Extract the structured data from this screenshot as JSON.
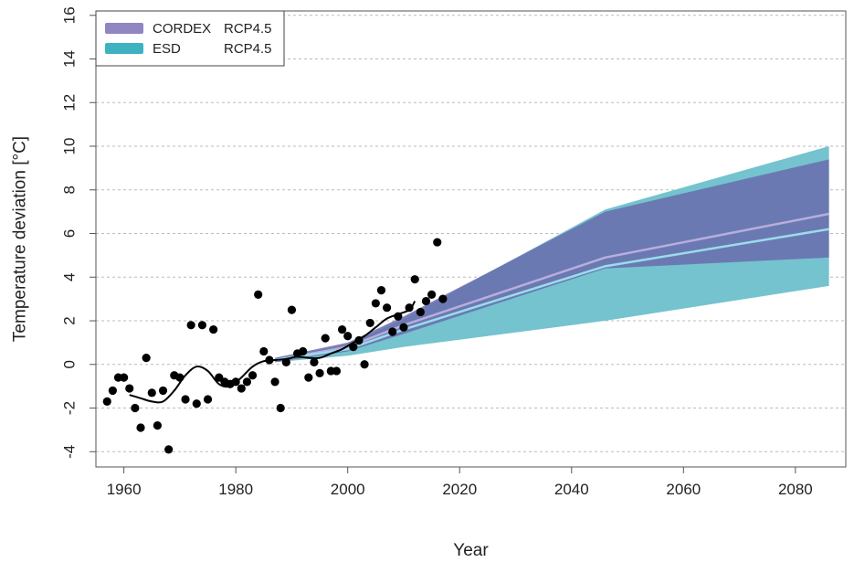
{
  "chart_data": {
    "type": "scatter",
    "title": "",
    "xlabel": "Year",
    "ylabel": "Temperature deviation [°C]",
    "xlim": [
      1955,
      2089
    ],
    "ylim": [
      -4.7,
      16.2
    ],
    "xticks": [
      1960,
      1980,
      2000,
      2020,
      2040,
      2060,
      2080
    ],
    "yticks": [
      -4,
      -2,
      0,
      2,
      4,
      6,
      8,
      10,
      12,
      14,
      16
    ],
    "grid": "horizontal dashed",
    "legend_position": "top-left",
    "legend": [
      {
        "label": "CORDEX",
        "scenario": "RCP4.5",
        "color": "#8f86c2"
      },
      {
        "label": "ESD",
        "scenario": "RCP4.5",
        "color": "#3fb2c2"
      }
    ],
    "colors": {
      "cordex_band": "#6a6cad",
      "cordex_band_opacity": 0.85,
      "cordex_line": "#b7aedc",
      "esd_band": "#74c3cf",
      "esd_line": "#9adcea",
      "points": "#000000",
      "smooth_line": "#000000",
      "grid": "#bbbbbb"
    },
    "esd_band": {
      "x": [
        1987,
        2000,
        2010,
        2046,
        2086
      ],
      "upper": [
        0.3,
        0.9,
        2.1,
        7.1,
        10.0
      ],
      "lower": [
        0.1,
        0.4,
        0.8,
        2.0,
        3.6
      ]
    },
    "cordex_band": {
      "x": [
        1987,
        2000,
        2010,
        2046,
        2086
      ],
      "upper": [
        0.3,
        1.0,
        2.2,
        7.0,
        9.4
      ],
      "lower": [
        0.1,
        0.6,
        1.4,
        4.4,
        4.9
      ]
    },
    "cordex_mean": {
      "x": [
        1987,
        2000,
        2010,
        2046,
        2086
      ],
      "y": [
        0.2,
        0.8,
        1.8,
        4.9,
        6.9
      ]
    },
    "esd_mean": {
      "x": [
        1987,
        2000,
        2010,
        2046,
        2086
      ],
      "y": [
        0.2,
        0.7,
        1.6,
        4.5,
        6.2
      ]
    },
    "observations": {
      "x": [
        1957,
        1958,
        1959,
        1960,
        1961,
        1962,
        1963,
        1964,
        1965,
        1966,
        1967,
        1968,
        1969,
        1970,
        1971,
        1972,
        1973,
        1974,
        1975,
        1976,
        1977,
        1978,
        1979,
        1980,
        1981,
        1982,
        1983,
        1984,
        1985,
        1986,
        1987,
        1988,
        1989,
        1990,
        1991,
        1992,
        1993,
        1994,
        1995,
        1996,
        1997,
        1998,
        1999,
        2000,
        2001,
        2002,
        2003,
        2004,
        2005,
        2006,
        2007,
        2008,
        2009,
        2010,
        2011,
        2012,
        2013,
        2014,
        2015,
        2016,
        2017
      ],
      "y": [
        -1.7,
        -1.2,
        -0.6,
        -0.6,
        -1.1,
        -2.0,
        -2.9,
        0.3,
        -1.3,
        -2.8,
        -1.2,
        -3.9,
        -0.5,
        -0.6,
        -1.6,
        1.8,
        -1.8,
        1.8,
        -1.6,
        1.6,
        -0.6,
        -0.8,
        -0.9,
        -0.8,
        -1.1,
        -0.8,
        -0.5,
        3.2,
        0.6,
        0.2,
        -0.8,
        -2.0,
        0.1,
        2.5,
        0.5,
        0.6,
        -0.6,
        0.1,
        -0.4,
        1.2,
        -0.3,
        -0.3,
        1.6,
        1.3,
        0.8,
        1.1,
        0.0,
        1.9,
        2.8,
        3.4,
        2.6,
        1.5,
        2.2,
        1.7,
        2.6,
        3.9,
        2.4,
        2.9,
        3.2,
        5.6,
        3.0
      ]
    },
    "smoothed": {
      "x": [
        1961,
        1963,
        1965,
        1967,
        1969,
        1971,
        1973,
        1975,
        1977,
        1979,
        1981,
        1983,
        1985,
        1987,
        1989,
        1991,
        1993,
        1995,
        1997,
        1999,
        2001,
        2003,
        2005,
        2007,
        2009,
        2011,
        2012
      ],
      "y": [
        -1.4,
        -1.55,
        -1.7,
        -1.7,
        -1.2,
        -0.5,
        -0.1,
        -0.3,
        -0.9,
        -1.0,
        -0.6,
        -0.1,
        0.15,
        0.2,
        0.25,
        0.35,
        0.3,
        0.3,
        0.5,
        0.7,
        1.0,
        1.3,
        1.7,
        2.1,
        2.3,
        2.5,
        2.9
      ]
    }
  }
}
